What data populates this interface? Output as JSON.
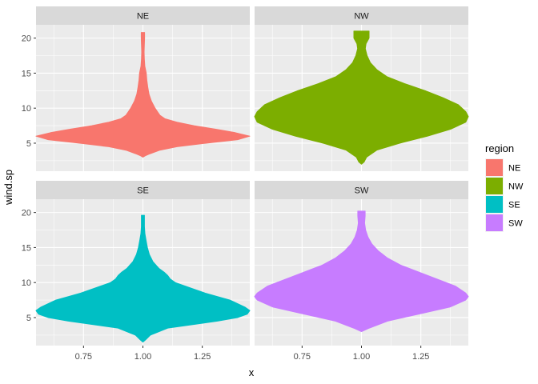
{
  "chart_data": {
    "type": "violin",
    "xlabel": "x",
    "ylabel": "wind.sp",
    "x_ticks": [
      "0.75",
      "1.00",
      "1.25"
    ],
    "x_tick_values": [
      0.75,
      1.0,
      1.25
    ],
    "xlim": [
      0.55,
      1.45
    ],
    "y_ticks": [
      "5",
      "10",
      "15",
      "20"
    ],
    "y_tick_values": [
      5,
      10,
      15,
      20
    ],
    "ylim": [
      1.0,
      21.9
    ],
    "grid": true,
    "legend": {
      "title": "region",
      "position": "right",
      "entries": [
        "NE",
        "NW",
        "SE",
        "SW"
      ]
    },
    "facets": [
      {
        "label": "NE",
        "color": "#F8766D",
        "x": 1.0,
        "y_range": [
          3.0,
          20.8
        ],
        "density": [
          [
            3.0,
            0.0
          ],
          [
            3.2,
            0.01
          ],
          [
            3.5,
            0.03
          ],
          [
            4.0,
            0.07
          ],
          [
            4.5,
            0.14
          ],
          [
            5.0,
            0.26
          ],
          [
            5.5,
            0.39
          ],
          [
            6.0,
            0.44
          ],
          [
            6.5,
            0.38
          ],
          [
            7.0,
            0.3
          ],
          [
            7.5,
            0.21
          ],
          [
            8.0,
            0.14
          ],
          [
            8.5,
            0.09
          ],
          [
            9.0,
            0.07
          ],
          [
            9.5,
            0.06
          ],
          [
            10.0,
            0.05
          ],
          [
            11.0,
            0.035
          ],
          [
            12.0,
            0.025
          ],
          [
            13.0,
            0.02
          ],
          [
            14.0,
            0.016
          ],
          [
            15.0,
            0.014
          ],
          [
            16.0,
            0.008
          ],
          [
            17.0,
            0.006
          ],
          [
            18.0,
            0.005
          ],
          [
            19.0,
            0.006
          ],
          [
            20.0,
            0.007
          ],
          [
            20.8,
            0.007
          ]
        ]
      },
      {
        "label": "NW",
        "color": "#7CAE00",
        "x": 1.0,
        "y_range": [
          2.0,
          21.0
        ],
        "density": [
          [
            2.0,
            0.0
          ],
          [
            2.3,
            0.01
          ],
          [
            3.0,
            0.02
          ],
          [
            4.0,
            0.06
          ],
          [
            5.0,
            0.15
          ],
          [
            6.0,
            0.26
          ],
          [
            7.0,
            0.35
          ],
          [
            8.0,
            0.41
          ],
          [
            8.8,
            0.42
          ],
          [
            9.5,
            0.41
          ],
          [
            10.5,
            0.38
          ],
          [
            11.5,
            0.32
          ],
          [
            12.5,
            0.25
          ],
          [
            13.5,
            0.17
          ],
          [
            14.5,
            0.1
          ],
          [
            15.5,
            0.06
          ],
          [
            16.5,
            0.035
          ],
          [
            17.5,
            0.022
          ],
          [
            18.5,
            0.015
          ],
          [
            19.2,
            0.018
          ],
          [
            20.0,
            0.03
          ],
          [
            21.0,
            0.03
          ]
        ]
      },
      {
        "label": "SE",
        "color": "#00BFC4",
        "x": 1.0,
        "y_range": [
          1.5,
          19.6
        ],
        "density": [
          [
            1.5,
            0.0
          ],
          [
            1.8,
            0.01
          ],
          [
            2.5,
            0.03
          ],
          [
            3.5,
            0.1
          ],
          [
            4.5,
            0.3
          ],
          [
            5.0,
            0.38
          ],
          [
            5.5,
            0.42
          ],
          [
            6.0,
            0.43
          ],
          [
            6.5,
            0.41
          ],
          [
            7.0,
            0.38
          ],
          [
            7.5,
            0.35
          ],
          [
            8.0,
            0.3
          ],
          [
            8.5,
            0.25
          ],
          [
            9.0,
            0.21
          ],
          [
            9.5,
            0.17
          ],
          [
            10.0,
            0.13
          ],
          [
            10.5,
            0.11
          ],
          [
            11.0,
            0.1
          ],
          [
            11.5,
            0.085
          ],
          [
            12.0,
            0.065
          ],
          [
            13.0,
            0.04
          ],
          [
            14.0,
            0.026
          ],
          [
            15.0,
            0.018
          ],
          [
            16.0,
            0.013
          ],
          [
            17.0,
            0.008
          ],
          [
            18.0,
            0.006
          ],
          [
            19.6,
            0.006
          ]
        ]
      },
      {
        "label": "SW",
        "color": "#C77CFF",
        "x": 1.0,
        "y_range": [
          3.0,
          20.2
        ],
        "density": [
          [
            3.0,
            0.0
          ],
          [
            3.5,
            0.03
          ],
          [
            4.5,
            0.1
          ],
          [
            5.5,
            0.22
          ],
          [
            6.5,
            0.34
          ],
          [
            7.5,
            0.4
          ],
          [
            8.0,
            0.41
          ],
          [
            8.5,
            0.4
          ],
          [
            9.5,
            0.36
          ],
          [
            10.5,
            0.29
          ],
          [
            11.5,
            0.22
          ],
          [
            12.5,
            0.15
          ],
          [
            13.5,
            0.1
          ],
          [
            14.5,
            0.065
          ],
          [
            15.5,
            0.04
          ],
          [
            16.5,
            0.025
          ],
          [
            17.5,
            0.016
          ],
          [
            18.5,
            0.012
          ],
          [
            19.5,
            0.014
          ],
          [
            20.2,
            0.014
          ]
        ]
      }
    ]
  }
}
